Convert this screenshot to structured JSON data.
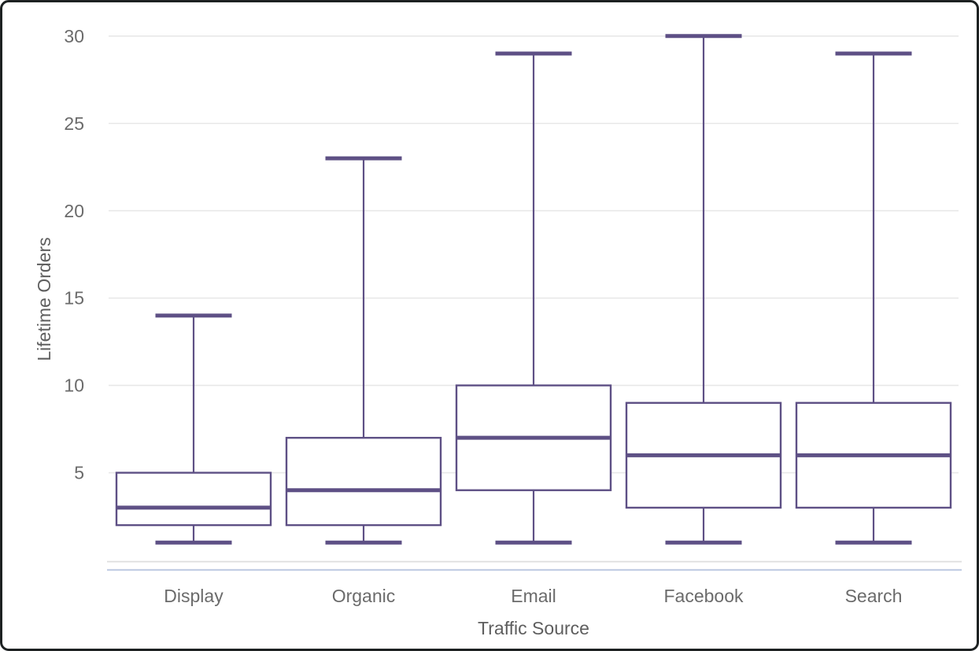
{
  "chart_data": {
    "type": "boxplot",
    "title": "",
    "xlabel": "Traffic Source",
    "ylabel": "Lifetime Orders",
    "categories": [
      "Display",
      "Organic",
      "Email",
      "Facebook",
      "Search"
    ],
    "series": [
      {
        "name": "Display",
        "min": 1,
        "q1": 2,
        "median": 3,
        "q3": 5,
        "max": 14
      },
      {
        "name": "Organic",
        "min": 1,
        "q1": 2,
        "median": 4,
        "q3": 7,
        "max": 23
      },
      {
        "name": "Email",
        "min": 1,
        "q1": 4,
        "median": 7,
        "q3": 10,
        "max": 29
      },
      {
        "name": "Facebook",
        "min": 1,
        "q1": 3,
        "median": 6,
        "q3": 9,
        "max": 30
      },
      {
        "name": "Search",
        "min": 1,
        "q1": 3,
        "median": 6,
        "q3": 9,
        "max": 29
      }
    ],
    "yticks": [
      5,
      10,
      15,
      20,
      25,
      30
    ],
    "ylim": [
      0,
      30.5
    ],
    "grid": "horizontal",
    "legend": "none",
    "colors": {
      "box_stroke": "#5e5085",
      "box_fill": "#ffffff",
      "gridline": "#e8e8e8",
      "axis_line_gray": "#dedede",
      "axis_line_blue": "#c3cee4",
      "tick_label": "#6b6b6b",
      "axis_title": "#5e5e5e",
      "frame": "#1d2122",
      "background": "#ffffff"
    }
  }
}
